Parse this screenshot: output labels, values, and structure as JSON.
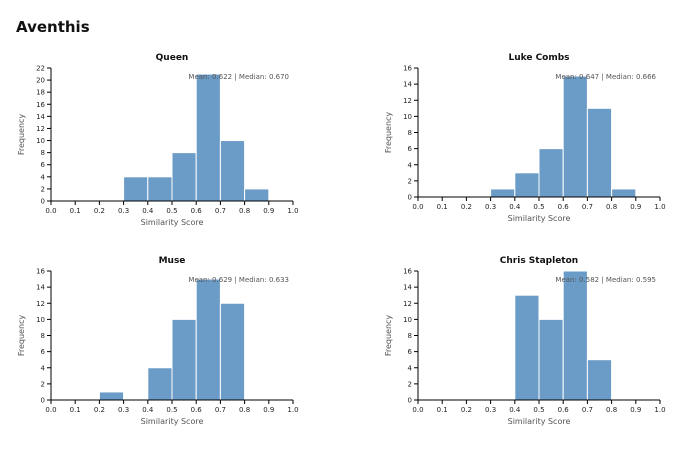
{
  "page_title": "Aventhis",
  "chart_data": [
    {
      "type": "bar",
      "title": "Queen",
      "stats_text": "Mean: 0.622 | Median: 0.670",
      "xlabel": "Similarity Score",
      "ylabel": "Frequency",
      "xlim": [
        0,
        1
      ],
      "ylim": [
        0,
        22
      ],
      "xticks": [
        "0.0",
        "0.1",
        "0.2",
        "0.3",
        "0.4",
        "0.5",
        "0.6",
        "0.7",
        "0.8",
        "0.9",
        "1.0"
      ],
      "yticks": [
        0,
        2,
        4,
        6,
        8,
        10,
        12,
        14,
        16,
        18,
        20,
        22
      ],
      "bins": [
        {
          "x0": 0.3,
          "x1": 0.4,
          "count": 4
        },
        {
          "x0": 0.4,
          "x1": 0.5,
          "count": 4
        },
        {
          "x0": 0.5,
          "x1": 0.6,
          "count": 8
        },
        {
          "x0": 0.6,
          "x1": 0.7,
          "count": 21
        },
        {
          "x0": 0.7,
          "x1": 0.8,
          "count": 10
        },
        {
          "x0": 0.8,
          "x1": 0.9,
          "count": 2
        }
      ]
    },
    {
      "type": "bar",
      "title": "Luke Combs",
      "stats_text": "Mean: 0.647 | Median: 0.666",
      "xlabel": "Similarity Score",
      "ylabel": "Frequency",
      "xlim": [
        0,
        1
      ],
      "ylim": [
        0,
        16
      ],
      "xticks": [
        "0.0",
        "0.1",
        "0.2",
        "0.3",
        "0.4",
        "0.5",
        "0.6",
        "0.7",
        "0.8",
        "0.9",
        "1.0"
      ],
      "yticks": [
        0,
        2,
        4,
        6,
        8,
        10,
        12,
        14,
        16
      ],
      "bins": [
        {
          "x0": 0.3,
          "x1": 0.4,
          "count": 1
        },
        {
          "x0": 0.4,
          "x1": 0.5,
          "count": 3
        },
        {
          "x0": 0.5,
          "x1": 0.6,
          "count": 6
        },
        {
          "x0": 0.6,
          "x1": 0.7,
          "count": 15
        },
        {
          "x0": 0.7,
          "x1": 0.8,
          "count": 11
        },
        {
          "x0": 0.8,
          "x1": 0.9,
          "count": 1
        }
      ]
    },
    {
      "type": "bar",
      "title": "Muse",
      "stats_text": "Mean: 0.629 | Median: 0.633",
      "xlabel": "Similarity Score",
      "ylabel": "Frequency",
      "xlim": [
        0,
        1
      ],
      "ylim": [
        0,
        16
      ],
      "xticks": [
        "0.0",
        "0.1",
        "0.2",
        "0.3",
        "0.4",
        "0.5",
        "0.6",
        "0.7",
        "0.8",
        "0.9",
        "1.0"
      ],
      "yticks": [
        0,
        2,
        4,
        6,
        8,
        10,
        12,
        14,
        16
      ],
      "bins": [
        {
          "x0": 0.2,
          "x1": 0.3,
          "count": 1
        },
        {
          "x0": 0.4,
          "x1": 0.5,
          "count": 4
        },
        {
          "x0": 0.5,
          "x1": 0.6,
          "count": 10
        },
        {
          "x0": 0.6,
          "x1": 0.7,
          "count": 15
        },
        {
          "x0": 0.7,
          "x1": 0.8,
          "count": 12
        }
      ]
    },
    {
      "type": "bar",
      "title": "Chris Stapleton",
      "stats_text": "Mean: 0.582 | Median: 0.595",
      "xlabel": "Similarity Score",
      "ylabel": "Frequency",
      "xlim": [
        0,
        1
      ],
      "ylim": [
        0,
        16
      ],
      "xticks": [
        "0.0",
        "0.1",
        "0.2",
        "0.3",
        "0.4",
        "0.5",
        "0.6",
        "0.7",
        "0.8",
        "0.9",
        "1.0"
      ],
      "yticks": [
        0,
        2,
        4,
        6,
        8,
        10,
        12,
        14,
        16
      ],
      "bins": [
        {
          "x0": 0.4,
          "x1": 0.5,
          "count": 13
        },
        {
          "x0": 0.5,
          "x1": 0.6,
          "count": 10
        },
        {
          "x0": 0.6,
          "x1": 0.7,
          "count": 16
        },
        {
          "x0": 0.7,
          "x1": 0.8,
          "count": 5
        }
      ]
    }
  ],
  "colors": {
    "bar_fill": "#6b9bc7",
    "bar_stroke": "#ffffff",
    "axis": "#000000"
  }
}
